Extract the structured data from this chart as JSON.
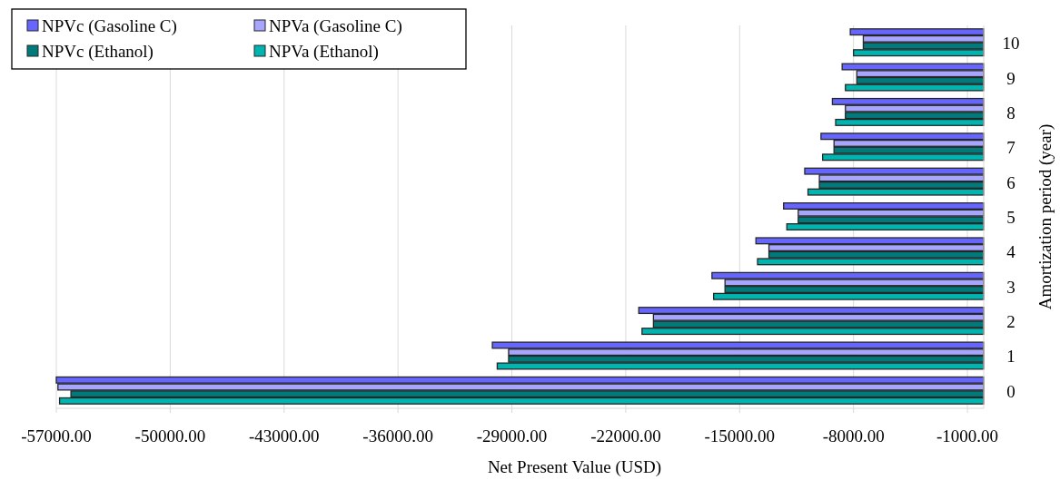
{
  "chart_data": {
    "type": "bar",
    "orientation": "horizontal",
    "xlabel": "Net Present Value (USD)",
    "ylabel": "Amortization period (year)",
    "categories": [
      "10",
      "9",
      "8",
      "7",
      "6",
      "5",
      "4",
      "3",
      "2",
      "1",
      "0"
    ],
    "series": [
      {
        "name": "NPVc (Gasoline C)",
        "color": "#6666ff",
        "values": [
          -8200,
          -8700,
          -9300,
          -10000,
          -11000,
          -12300,
          -14000,
          -16700,
          -21200,
          -30200,
          -57000
        ]
      },
      {
        "name": "NPVa (Gasoline C)",
        "color": "#a6a6ff",
        "values": [
          -7400,
          -7800,
          -8500,
          -9200,
          -10100,
          -11400,
          -13200,
          -15900,
          -20300,
          -29200,
          -56900
        ]
      },
      {
        "name": "NPVc (Ethanol)",
        "color": "#007a7a",
        "values": [
          -7400,
          -7800,
          -8500,
          -9200,
          -10100,
          -11400,
          -13200,
          -15900,
          -20300,
          -29200,
          -56100
        ]
      },
      {
        "name": "NPVa (Ethanol)",
        "color": "#00b5b0",
        "values": [
          -8000,
          -8500,
          -9100,
          -9900,
          -10800,
          -12100,
          -13900,
          -16600,
          -21000,
          -29900,
          -56800
        ]
      }
    ],
    "xlim": [
      -57000,
      0
    ],
    "xticks": [
      {
        "value": -57000,
        "label": "-57000.00"
      },
      {
        "value": -50000,
        "label": "-50000.00"
      },
      {
        "value": -43000,
        "label": "-43000.00"
      },
      {
        "value": -36000,
        "label": "-36000.00"
      },
      {
        "value": -29000,
        "label": "-29000.00"
      },
      {
        "value": -22000,
        "label": "-22000.00"
      },
      {
        "value": -15000,
        "label": "-15000.00"
      },
      {
        "value": -8000,
        "label": "-8000.00"
      },
      {
        "value": -1000,
        "label": "-1000.00"
      }
    ],
    "grid": "x",
    "legend": "top left"
  }
}
